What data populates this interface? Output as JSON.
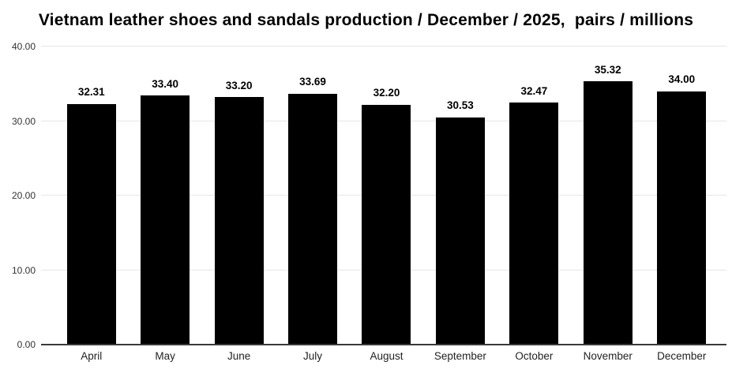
{
  "title": "Vietnam leather shoes and sandals production / December / 2025,  pairs / millions",
  "chart_data": {
    "type": "bar",
    "title": "Vietnam leather shoes and sandals production / December / 2025,  pairs / millions",
    "categories": [
      "April",
      "May",
      "June",
      "July",
      "August",
      "September",
      "October",
      "November",
      "December"
    ],
    "values": [
      32.31,
      33.4,
      33.2,
      33.69,
      32.2,
      30.53,
      32.47,
      35.32,
      34.0
    ],
    "value_labels": [
      "32.31",
      "33.40",
      "33.20",
      "33.69",
      "32.20",
      "30.53",
      "32.47",
      "35.32",
      "34.00"
    ],
    "xlabel": "",
    "ylabel": "",
    "ylim": [
      0,
      40
    ],
    "y_ticks": [
      0,
      10,
      20,
      30,
      40
    ],
    "y_tick_labels": [
      "0.00",
      "10.00",
      "20.00",
      "30.00",
      "40.00"
    ],
    "grid": "horizontal",
    "legend_position": "none",
    "colors": {
      "bar": "#000000",
      "gridline": "#e6e6e6",
      "axis_line": "#3a3a3a",
      "tick_label": "#333333",
      "category_label": "#222222",
      "value_label": "#000000",
      "background": "#ffffff"
    }
  }
}
